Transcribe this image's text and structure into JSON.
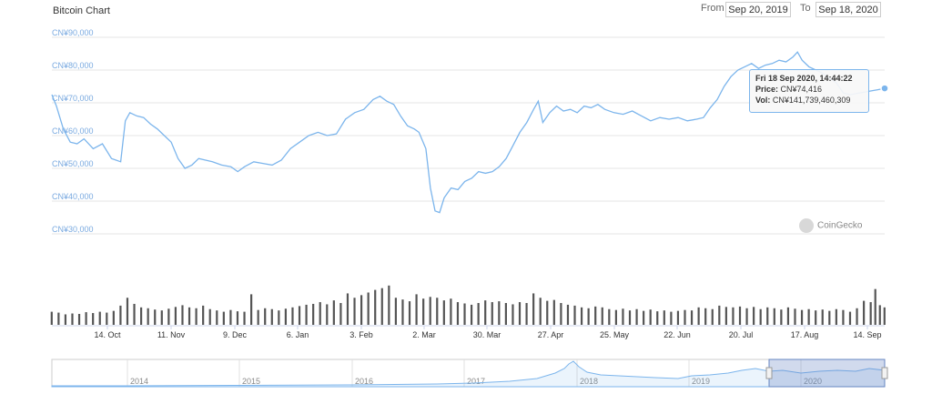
{
  "header": {
    "title": "Bitcoin Chart",
    "from_label": "From",
    "from_value": "Sep 20, 2019",
    "to_label": "To",
    "to_value": "Sep 18, 2020"
  },
  "tooltip": {
    "date": "Fri 18 Sep 2020, 14:44:22",
    "price_label": "Price:",
    "price_value": "CN¥74,416",
    "vol_label": "Vol:",
    "vol_value": "CN¥141,739,460,309"
  },
  "credit": "CoinGecko",
  "colors": {
    "line": "#7cb5ec",
    "volume": "#555555",
    "grid": "#e6e6e6"
  },
  "chart_data": {
    "type": "line",
    "title": "Bitcoin Chart",
    "ylim": [
      30000,
      90000
    ],
    "y_ticks": [
      "CN¥90,000",
      "CN¥80,000",
      "CN¥70,000",
      "CN¥60,000",
      "CN¥50,000",
      "CN¥40,000",
      "CN¥30,000"
    ],
    "x_ticks": [
      "14. Oct",
      "11. Nov",
      "9. Dec",
      "6. Jan",
      "3. Feb",
      "2. Mar",
      "30. Mar",
      "27. Apr",
      "25. May",
      "22. Jun",
      "20. Jul",
      "17. Aug",
      "14. Sep"
    ],
    "x_range_days": [
      "2019-09-20",
      "2020-09-18"
    ],
    "price_series": [
      [
        0,
        72500
      ],
      [
        2,
        69000
      ],
      [
        5,
        62000
      ],
      [
        8,
        58000
      ],
      [
        11,
        57500
      ],
      [
        14,
        59000
      ],
      [
        18,
        56000
      ],
      [
        22,
        57500
      ],
      [
        26,
        53000
      ],
      [
        30,
        52000
      ],
      [
        32,
        64500
      ],
      [
        34,
        67000
      ],
      [
        37,
        66000
      ],
      [
        40,
        65500
      ],
      [
        43,
        63500
      ],
      [
        46,
        62000
      ],
      [
        49,
        60000
      ],
      [
        52,
        58000
      ],
      [
        55,
        53000
      ],
      [
        58,
        50000
      ],
      [
        61,
        51000
      ],
      [
        64,
        53000
      ],
      [
        67,
        52500
      ],
      [
        70,
        52000
      ],
      [
        74,
        51000
      ],
      [
        78,
        50500
      ],
      [
        81,
        49000
      ],
      [
        84,
        50500
      ],
      [
        88,
        52000
      ],
      [
        92,
        51500
      ],
      [
        96,
        51000
      ],
      [
        100,
        52500
      ],
      [
        104,
        56000
      ],
      [
        108,
        58000
      ],
      [
        112,
        60000
      ],
      [
        116,
        61000
      ],
      [
        120,
        60000
      ],
      [
        124,
        60500
      ],
      [
        128,
        65000
      ],
      [
        132,
        67000
      ],
      [
        136,
        68000
      ],
      [
        140,
        71000
      ],
      [
        143,
        72000
      ],
      [
        146,
        70500
      ],
      [
        149,
        69500
      ],
      [
        152,
        66000
      ],
      [
        155,
        63000
      ],
      [
        158,
        62000
      ],
      [
        160,
        61000
      ],
      [
        163,
        56000
      ],
      [
        165,
        44000
      ],
      [
        167,
        37000
      ],
      [
        169,
        36500
      ],
      [
        171,
        41000
      ],
      [
        174,
        44000
      ],
      [
        177,
        43500
      ],
      [
        180,
        46000
      ],
      [
        183,
        47000
      ],
      [
        186,
        49000
      ],
      [
        189,
        48500
      ],
      [
        192,
        49000
      ],
      [
        195,
        50500
      ],
      [
        198,
        53000
      ],
      [
        201,
        57000
      ],
      [
        204,
        61000
      ],
      [
        207,
        64000
      ],
      [
        210,
        68000
      ],
      [
        212,
        70500
      ],
      [
        214,
        64000
      ],
      [
        217,
        67000
      ],
      [
        220,
        69000
      ],
      [
        223,
        67500
      ],
      [
        226,
        68000
      ],
      [
        229,
        67000
      ],
      [
        232,
        69000
      ],
      [
        235,
        68500
      ],
      [
        238,
        69500
      ],
      [
        241,
        68000
      ],
      [
        245,
        67000
      ],
      [
        249,
        66500
      ],
      [
        253,
        67500
      ],
      [
        257,
        66000
      ],
      [
        261,
        64500
      ],
      [
        265,
        65500
      ],
      [
        269,
        65000
      ],
      [
        273,
        65500
      ],
      [
        277,
        64500
      ],
      [
        281,
        65000
      ],
      [
        284,
        65500
      ],
      [
        287,
        68500
      ],
      [
        290,
        71000
      ],
      [
        293,
        75000
      ],
      [
        296,
        78000
      ],
      [
        299,
        80000
      ],
      [
        302,
        81000
      ],
      [
        305,
        82000
      ],
      [
        308,
        80500
      ],
      [
        311,
        81500
      ],
      [
        314,
        82000
      ],
      [
        317,
        83000
      ],
      [
        320,
        82500
      ],
      [
        323,
        84000
      ],
      [
        325,
        85500
      ],
      [
        327,
        83000
      ],
      [
        330,
        81000
      ],
      [
        333,
        80000
      ],
      [
        336,
        79000
      ],
      [
        339,
        77500
      ],
      [
        342,
        76000
      ],
      [
        345,
        73000
      ],
      [
        348,
        72500
      ],
      [
        352,
        73000
      ],
      [
        356,
        73500
      ],
      [
        360,
        74000
      ],
      [
        363,
        74416
      ]
    ],
    "volume_series": [
      [
        0,
        0.3
      ],
      [
        3,
        0.28
      ],
      [
        6,
        0.24
      ],
      [
        9,
        0.26
      ],
      [
        12,
        0.25
      ],
      [
        15,
        0.29
      ],
      [
        18,
        0.27
      ],
      [
        21,
        0.3
      ],
      [
        24,
        0.28
      ],
      [
        27,
        0.32
      ],
      [
        30,
        0.44
      ],
      [
        33,
        0.62
      ],
      [
        36,
        0.48
      ],
      [
        39,
        0.4
      ],
      [
        42,
        0.38
      ],
      [
        45,
        0.35
      ],
      [
        48,
        0.33
      ],
      [
        51,
        0.37
      ],
      [
        54,
        0.41
      ],
      [
        57,
        0.45
      ],
      [
        60,
        0.4
      ],
      [
        63,
        0.38
      ],
      [
        66,
        0.44
      ],
      [
        69,
        0.36
      ],
      [
        72,
        0.33
      ],
      [
        75,
        0.3
      ],
      [
        78,
        0.34
      ],
      [
        81,
        0.31
      ],
      [
        84,
        0.3
      ],
      [
        87,
        0.7
      ],
      [
        90,
        0.34
      ],
      [
        93,
        0.38
      ],
      [
        96,
        0.36
      ],
      [
        99,
        0.33
      ],
      [
        102,
        0.37
      ],
      [
        105,
        0.4
      ],
      [
        108,
        0.43
      ],
      [
        111,
        0.46
      ],
      [
        114,
        0.48
      ],
      [
        117,
        0.52
      ],
      [
        120,
        0.47
      ],
      [
        123,
        0.56
      ],
      [
        126,
        0.5
      ],
      [
        129,
        0.72
      ],
      [
        132,
        0.62
      ],
      [
        135,
        0.68
      ],
      [
        138,
        0.74
      ],
      [
        141,
        0.8
      ],
      [
        144,
        0.84
      ],
      [
        147,
        0.9
      ],
      [
        150,
        0.62
      ],
      [
        153,
        0.58
      ],
      [
        156,
        0.54
      ],
      [
        159,
        0.7
      ],
      [
        162,
        0.6
      ],
      [
        165,
        0.64
      ],
      [
        168,
        0.62
      ],
      [
        171,
        0.56
      ],
      [
        174,
        0.6
      ],
      [
        177,
        0.52
      ],
      [
        180,
        0.49
      ],
      [
        183,
        0.46
      ],
      [
        186,
        0.5
      ],
      [
        189,
        0.56
      ],
      [
        192,
        0.52
      ],
      [
        195,
        0.54
      ],
      [
        198,
        0.5
      ],
      [
        201,
        0.47
      ],
      [
        204,
        0.52
      ],
      [
        207,
        0.5
      ],
      [
        210,
        0.72
      ],
      [
        213,
        0.62
      ],
      [
        216,
        0.55
      ],
      [
        219,
        0.57
      ],
      [
        222,
        0.5
      ],
      [
        225,
        0.46
      ],
      [
        228,
        0.44
      ],
      [
        231,
        0.4
      ],
      [
        234,
        0.38
      ],
      [
        237,
        0.42
      ],
      [
        240,
        0.4
      ],
      [
        243,
        0.36
      ],
      [
        246,
        0.34
      ],
      [
        249,
        0.37
      ],
      [
        252,
        0.33
      ],
      [
        255,
        0.36
      ],
      [
        258,
        0.32
      ],
      [
        261,
        0.35
      ],
      [
        264,
        0.31
      ],
      [
        267,
        0.33
      ],
      [
        270,
        0.3
      ],
      [
        273,
        0.32
      ],
      [
        276,
        0.34
      ],
      [
        279,
        0.33
      ],
      [
        282,
        0.4
      ],
      [
        285,
        0.38
      ],
      [
        288,
        0.36
      ],
      [
        291,
        0.44
      ],
      [
        294,
        0.41
      ],
      [
        297,
        0.4
      ],
      [
        300,
        0.42
      ],
      [
        303,
        0.38
      ],
      [
        306,
        0.41
      ],
      [
        309,
        0.36
      ],
      [
        312,
        0.4
      ],
      [
        315,
        0.38
      ],
      [
        318,
        0.35
      ],
      [
        321,
        0.4
      ],
      [
        324,
        0.37
      ],
      [
        327,
        0.34
      ],
      [
        330,
        0.36
      ],
      [
        333,
        0.33
      ],
      [
        336,
        0.35
      ],
      [
        339,
        0.32
      ],
      [
        342,
        0.36
      ],
      [
        345,
        0.34
      ],
      [
        348,
        0.3
      ],
      [
        351,
        0.38
      ],
      [
        354,
        0.55
      ],
      [
        357,
        0.52
      ],
      [
        359,
        0.82
      ],
      [
        361,
        0.45
      ],
      [
        363,
        0.4
      ]
    ],
    "navigator": {
      "year_ticks": [
        "2014",
        "2015",
        "2016",
        "2017",
        "2018",
        "2019",
        "2020"
      ]
    }
  }
}
